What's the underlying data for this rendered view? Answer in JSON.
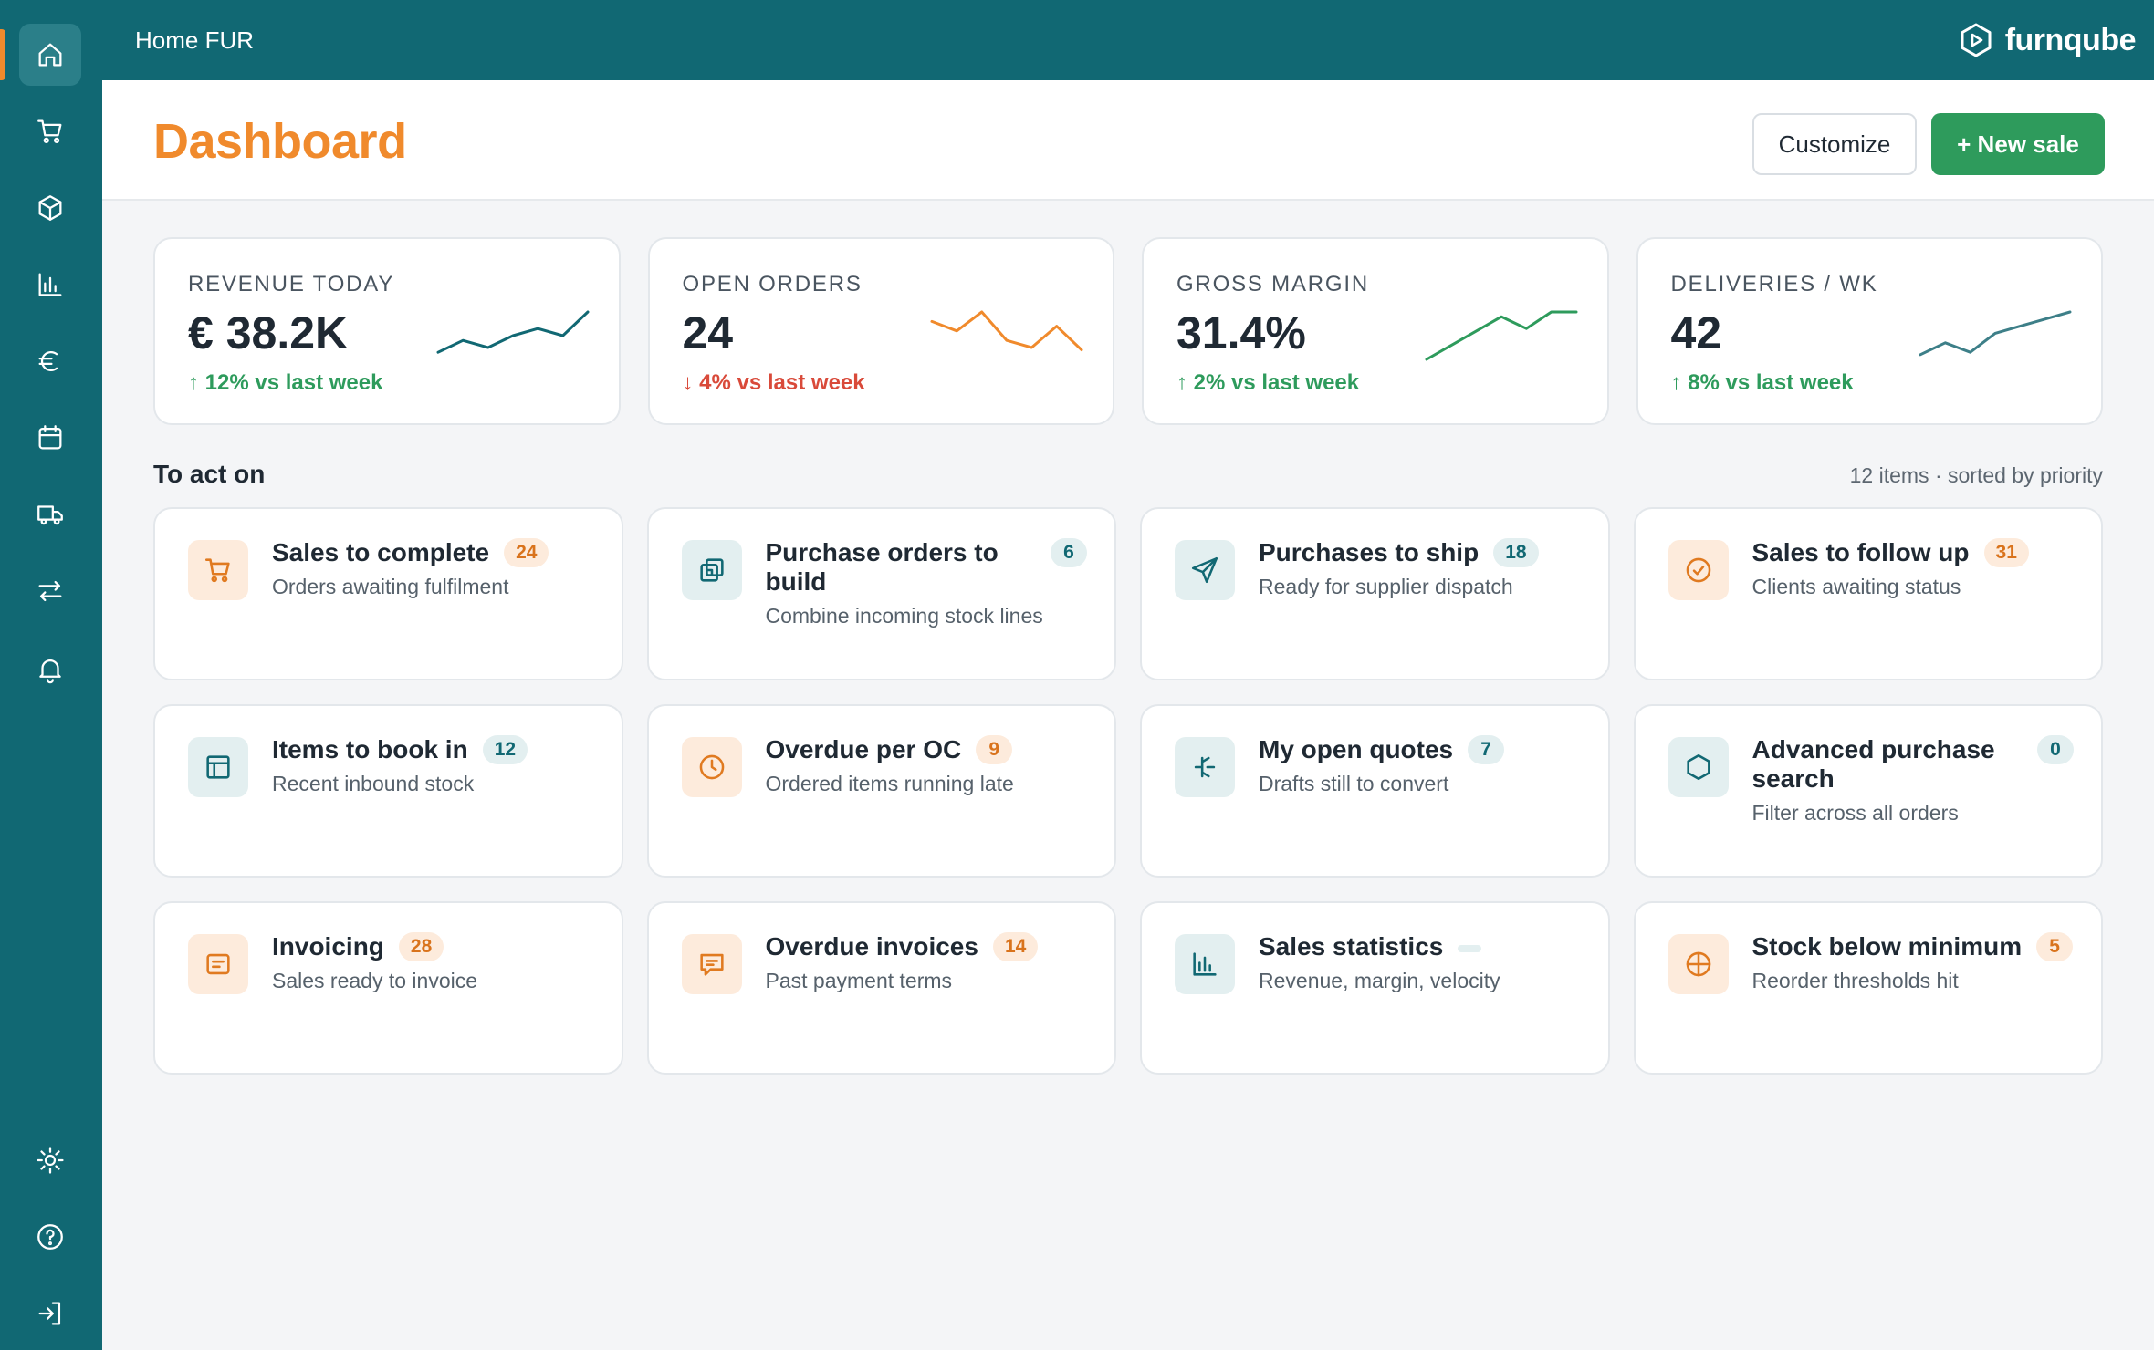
{
  "app": {
    "title": "Home FUR",
    "brand": "furnqube",
    "colors": {
      "primary": "#116873",
      "accent": "#f08a2c",
      "success": "#2e9b5c",
      "danger": "#d94a3a"
    }
  },
  "sidebar": {
    "items": [
      {
        "name": "home",
        "icon": "home-icon",
        "active": true
      },
      {
        "name": "sales",
        "icon": "cart-icon"
      },
      {
        "name": "products",
        "icon": "box-icon"
      },
      {
        "name": "statistics",
        "icon": "bar-chart-icon"
      },
      {
        "name": "finance",
        "icon": "euro-icon"
      },
      {
        "name": "calendar",
        "icon": "calendar-icon"
      },
      {
        "name": "deliveries",
        "icon": "truck-icon"
      },
      {
        "name": "transfers",
        "icon": "arrows-icon"
      },
      {
        "name": "notifications",
        "icon": "bell-icon"
      }
    ],
    "bottom_items": [
      {
        "name": "settings",
        "icon": "sun-gear-icon"
      },
      {
        "name": "help",
        "icon": "help-icon"
      },
      {
        "name": "logout",
        "icon": "logout-icon"
      }
    ]
  },
  "header": {
    "title": "Dashboard",
    "customize_label": "Customize",
    "new_sale_label": "+ New sale"
  },
  "kpis": [
    {
      "label": "REVENUE TODAY",
      "value": "€ 38.2K",
      "delta": "↑ 12% vs last week",
      "trend": "up",
      "spark_color": "#116873",
      "spark": [
        0.15,
        0.4,
        0.25,
        0.5,
        0.65,
        0.5,
        1.0
      ]
    },
    {
      "label": "OPEN ORDERS",
      "value": "24",
      "delta": "↓ 4% vs last week",
      "trend": "down",
      "spark_color": "#f08a2c",
      "spark": [
        0.8,
        0.6,
        1.0,
        0.4,
        0.25,
        0.7,
        0.2
      ]
    },
    {
      "label": "GROSS MARGIN",
      "value": "31.4%",
      "delta": "↑ 2% vs last week",
      "trend": "up",
      "spark_color": "#2e9b5c",
      "spark": [
        0.0,
        0.3,
        0.6,
        0.9,
        0.65,
        1.0,
        1.0
      ]
    },
    {
      "label": "DELIVERIES / WK",
      "value": "42",
      "delta": "↑ 8% vs last week",
      "trend": "up",
      "spark_color": "#3d7f88",
      "spark": [
        0.1,
        0.35,
        0.15,
        0.55,
        0.7,
        0.85,
        1.0
      ]
    }
  ],
  "section": {
    "title": "To act on",
    "meta": "12 items · sorted by priority"
  },
  "tasks": [
    {
      "title": "Sales to complete",
      "subtitle": "Orders awaiting fulfilment",
      "count": "24",
      "tone": "orange",
      "icon": "cart-icon"
    },
    {
      "title": "Purchase orders to build",
      "subtitle": "Combine incoming stock lines",
      "count": "6",
      "tone": "teal",
      "icon": "layers-icon",
      "wrap": true
    },
    {
      "title": "Purchases to ship",
      "subtitle": "Ready for supplier dispatch",
      "count": "18",
      "tone": "teal",
      "icon": "send-icon"
    },
    {
      "title": "Sales to follow up",
      "subtitle": "Clients awaiting status",
      "count": "31",
      "tone": "orange",
      "icon": "check-circle-icon"
    },
    {
      "title": "Items to book in",
      "subtitle": "Recent inbound stock",
      "count": "12",
      "tone": "teal",
      "icon": "layout-icon"
    },
    {
      "title": "Overdue per OC",
      "subtitle": "Ordered items running late",
      "count": "9",
      "tone": "orange",
      "icon": "clock-icon"
    },
    {
      "title": "My open quotes",
      "subtitle": "Drafts still to convert",
      "count": "7",
      "tone": "teal",
      "icon": "split-icon"
    },
    {
      "title": "Advanced purchase search",
      "subtitle": "Filter across all orders",
      "count": "0",
      "tone": "teal",
      "icon": "hexagon-icon",
      "wrap": true
    },
    {
      "title": "Invoicing",
      "subtitle": "Sales ready to invoice",
      "count": "28",
      "tone": "orange",
      "icon": "document-icon"
    },
    {
      "title": "Overdue invoices",
      "subtitle": "Past payment terms",
      "count": "14",
      "tone": "orange",
      "icon": "message-icon"
    },
    {
      "title": "Sales statistics",
      "subtitle": "Revenue, margin, velocity",
      "count": "",
      "tone": "teal",
      "icon": "bar-chart-icon"
    },
    {
      "title": "Stock below minimum",
      "subtitle": "Reorder thresholds hit",
      "count": "5",
      "tone": "orange",
      "icon": "crosshair-icon"
    }
  ]
}
